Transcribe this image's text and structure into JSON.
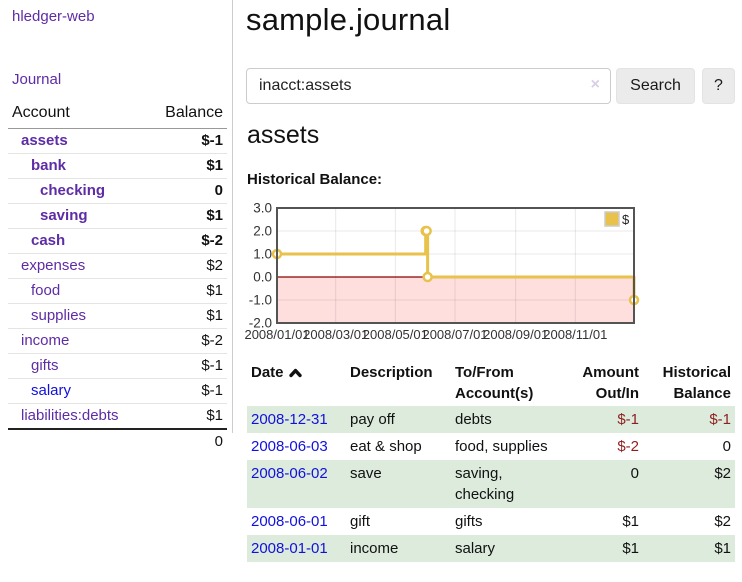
{
  "app": {
    "brand": "hledger-web"
  },
  "colors": {
    "link_purple": "#5e2ca5",
    "link_blue": "#1111dd",
    "negative_strong": "#8f1f1f",
    "negative_soft": "#ba7070",
    "row_stripe_green": "#dcebdc",
    "chart_line": "#e8c24a",
    "chart_negative_fill": "#ffdede",
    "chart_zero_line": "#8b0000",
    "chart_border": "#545454"
  },
  "sidebar": {
    "nav": {
      "journal_label": "Journal"
    },
    "accounts_table": {
      "headers": [
        "Account",
        "Balance"
      ],
      "rows": [
        {
          "account": "assets",
          "depth": 1,
          "balance": "$-1",
          "bold": true,
          "negative": "strong",
          "link_style": "purple"
        },
        {
          "account": "bank",
          "depth": 2,
          "balance": "$1",
          "bold": true,
          "negative": "none",
          "link_style": "purple"
        },
        {
          "account": "checking",
          "depth": 3,
          "balance": "0",
          "bold": true,
          "negative": "none",
          "link_style": "purple"
        },
        {
          "account": "saving",
          "depth": 3,
          "balance": "$1",
          "bold": true,
          "negative": "none",
          "link_style": "purple"
        },
        {
          "account": "cash",
          "depth": 2,
          "balance": "$-2",
          "bold": true,
          "negative": "strong",
          "link_style": "purple"
        },
        {
          "account": "expenses",
          "depth": 1,
          "balance": "$2",
          "bold": false,
          "negative": "none",
          "link_style": "purple"
        },
        {
          "account": "food",
          "depth": 2,
          "balance": "$1",
          "bold": false,
          "negative": "none",
          "link_style": "purple"
        },
        {
          "account": "supplies",
          "depth": 2,
          "balance": "$1",
          "bold": false,
          "negative": "none",
          "link_style": "purple"
        },
        {
          "account": "income",
          "depth": 1,
          "balance": "$-2",
          "bold": false,
          "negative": "soft",
          "link_style": "purple"
        },
        {
          "account": "gifts",
          "depth": 2,
          "balance": "$-1",
          "bold": false,
          "negative": "soft",
          "link_style": "purple"
        },
        {
          "account": "salary",
          "depth": 2,
          "balance": "$-1",
          "bold": false,
          "negative": "soft",
          "link_style": "blue"
        },
        {
          "account": "liabilities:debts",
          "depth": 1,
          "balance": "$1",
          "bold": false,
          "negative": "none",
          "link_style": "purple"
        }
      ],
      "total": "0"
    }
  },
  "main": {
    "page_title": "sample.journal",
    "account_heading": "assets",
    "search": {
      "value": "inacct:assets",
      "clear_icon": "×",
      "search_label": "Search",
      "help_label": "?"
    }
  },
  "chart_data": {
    "type": "line",
    "step": true,
    "title": "Historical Balance:",
    "legend_position": "ne",
    "grid": true,
    "x_range": [
      "2008-01-01",
      "2008-12-31"
    ],
    "ylim": [
      -2,
      3
    ],
    "y_ticks": [
      3.0,
      2.0,
      1.0,
      0.0,
      -1.0,
      -2.0
    ],
    "x_ticks": [
      "2008/01/01",
      "2008/03/01",
      "2008/05/01",
      "2008/07/01",
      "2008/09/01",
      "2008/11/01"
    ],
    "series": [
      {
        "name": "$",
        "color": "#e8c24a",
        "points": [
          [
            "2008-01-01",
            1
          ],
          [
            "2008-06-01",
            2
          ],
          [
            "2008-06-02",
            2
          ],
          [
            "2008-06-03",
            0
          ],
          [
            "2008-12-31",
            -1
          ]
        ]
      }
    ],
    "negative_region_fill": "#ffdede"
  },
  "register": {
    "headers": [
      "Date",
      "Description",
      "To/From Account(s)",
      "Amount Out/In",
      "Historical Balance"
    ],
    "sort": {
      "column": "Date",
      "direction": "ascending"
    },
    "rows": [
      {
        "date": "2008-12-31",
        "description": "pay off",
        "accounts": "debts",
        "amount": "$-1",
        "balance": "$-1",
        "amount_negative": true,
        "balance_negative": true
      },
      {
        "date": "2008-06-03",
        "description": "eat & shop",
        "accounts": "food, supplies",
        "amount": "$-2",
        "balance": "0",
        "amount_negative": true,
        "balance_negative": false
      },
      {
        "date": "2008-06-02",
        "description": "save",
        "accounts": "saving, checking",
        "amount": "0",
        "balance": "$2",
        "amount_negative": false,
        "balance_negative": false
      },
      {
        "date": "2008-06-01",
        "description": "gift",
        "accounts": "gifts",
        "amount": "$1",
        "balance": "$2",
        "amount_negative": false,
        "balance_negative": false
      },
      {
        "date": "2008-01-01",
        "description": "income",
        "accounts": "salary",
        "amount": "$1",
        "balance": "$1",
        "amount_negative": false,
        "balance_negative": false
      }
    ]
  }
}
